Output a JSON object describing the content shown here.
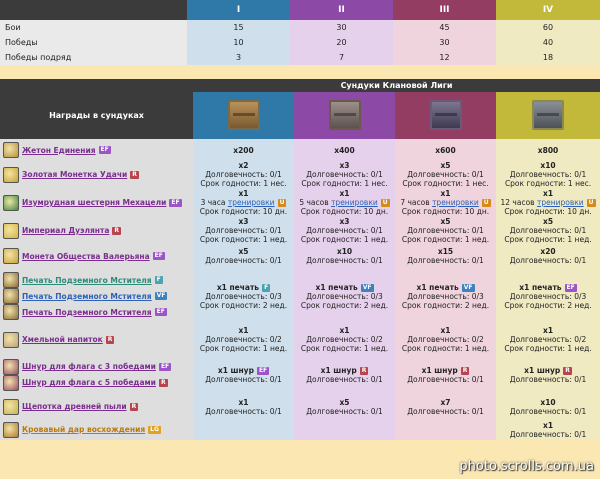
{
  "tiers": {
    "headers": [
      "I",
      "II",
      "III",
      "IV"
    ],
    "rows": [
      {
        "label": "Бои",
        "values": [
          "15",
          "30",
          "45",
          "60"
        ]
      },
      {
        "label": "Победы",
        "values": [
          "10",
          "20",
          "30",
          "40"
        ]
      },
      {
        "label": "Победы подряд",
        "values": [
          "3",
          "7",
          "12",
          "18"
        ]
      }
    ]
  },
  "main": {
    "title": "Сундуки Клановой Лиги",
    "rewards_header": "Награды в сундуках",
    "chest_icons": [
      "chest-wooden-icon",
      "chest-silver-icon",
      "chest-violet-icon",
      "chest-gold-icon"
    ]
  },
  "colors": {
    "tier1": "#2e79a8",
    "tier2": "#8c49a6",
    "tier3": "#943d62",
    "tier4": "#c2b83a"
  },
  "rows": [
    {
      "items": [
        {
          "name": "Жетон Единения",
          "badge": "EF",
          "link": "ep",
          "icon": "token-icon",
          "icon_color": "#b8903a"
        }
      ],
      "cells": [
        [
          "x200"
        ],
        [
          "x400"
        ],
        [
          "x600"
        ],
        [
          "x800"
        ]
      ]
    },
    {
      "items": [
        {
          "name": "Золотая Монетка Удачи",
          "badge": "R",
          "link": "ep",
          "icon": "gold-coin-icon",
          "icon_color": "#c9a22a"
        }
      ],
      "cells": [
        [
          "x2",
          "Долговечность: 0/1",
          "Срок годности: 1 нес."
        ],
        [
          "x3",
          "Долговечность: 0/1",
          "Срок годности: 1 нес."
        ],
        [
          "x5",
          "Долговечность: 0/1",
          "Срок годности: 1 нес."
        ],
        [
          "x10",
          "Долговечность: 0/1",
          "Срок годности: 1 нес."
        ]
      ]
    },
    {
      "items": [
        {
          "name": "Изумрудная шестерня Мехацели",
          "badge": "EF",
          "link": "ep",
          "icon": "emerald-gear-icon",
          "icon_color": "#3a8a3a"
        }
      ],
      "training": "тренировки",
      "cells": [
        [
          "x1",
          "3 часа",
          "Срок годности: 10 дн."
        ],
        [
          "x1",
          "5 часов",
          "Срок годности: 10 дн."
        ],
        [
          "x1",
          "7 часов",
          "Срок годности: 10 дн."
        ],
        [
          "x1",
          "12 часов",
          "Срок годности: 10 дн."
        ]
      ]
    },
    {
      "items": [
        {
          "name": "Империал Дуэлянта",
          "badge": "R",
          "link": "ep",
          "icon": "imperial-coin-icon",
          "icon_color": "#d6b43a"
        }
      ],
      "cells": [
        [
          "x3",
          "Долговечность: 0/1",
          "Срок годности: 1 нед."
        ],
        [
          "x3",
          "Долговечность: 0/1",
          "Срок годности: 1 нед."
        ],
        [
          "x5",
          "Долговечность: 0/1",
          "Срок годности: 1 нед."
        ],
        [
          "x5",
          "Долговечность: 0/1",
          "Срок годности: 1 нед."
        ]
      ]
    },
    {
      "items": [
        {
          "name": "Монета Общества Валерьяна",
          "badge": "EF",
          "link": "ep",
          "icon": "valerian-coin-icon",
          "icon_color": "#caa032"
        }
      ],
      "cells": [
        [
          "x5",
          "Долговечность: 0/1"
        ],
        [
          "x10",
          "Долговечность: 0/1"
        ],
        [
          "x15",
          "Долговечность: 0/1"
        ],
        [
          "x20",
          "Долговечность: 0/1"
        ]
      ]
    },
    {
      "items": [
        {
          "name": "Печать Подземного Мстителя",
          "badge": "F",
          "link": "un",
          "icon": "seal-icon",
          "icon_color": "#8a6a3a"
        },
        {
          "name": "Печать Подземного Мстителя",
          "badge": "VF",
          "link": "ra",
          "icon": "seal-icon",
          "icon_color": "#8a6a3a"
        },
        {
          "name": "Печать Подземного Мстителя",
          "badge": "EF",
          "link": "ep",
          "icon": "seal-icon",
          "icon_color": "#8a6a3a"
        }
      ],
      "cells": [
        {
          "head": "x1 печать",
          "badge": "F",
          "lines": [
            "Долговечность: 0/3",
            "Срок годности: 2 нед."
          ]
        },
        {
          "head": "x1 печать",
          "badge": "VF",
          "lines": [
            "Долговечность: 0/3",
            "Срок годности: 2 нед."
          ]
        },
        {
          "head": "x1 печать",
          "badge": "VF",
          "lines": [
            "Долговечность: 0/3",
            "Срок годности: 2 нед."
          ]
        },
        {
          "head": "x1 печать",
          "badge": "EF",
          "lines": [
            "Долговечность: 0/3",
            "Срок годности: 2 нед."
          ]
        }
      ]
    },
    {
      "items": [
        {
          "name": "Хмельной напиток",
          "badge": "R",
          "link": "ep",
          "icon": "drink-icon",
          "icon_color": "#b8a07a"
        }
      ],
      "cells": [
        [
          "x1",
          "Долговечность: 0/2",
          "Срок годности: 1 нед."
        ],
        [
          "x1",
          "Долговечность: 0/2",
          "Срок годности: 1 нед."
        ],
        [
          "x1",
          "Долговечность: 0/2",
          "Срок годности: 1 нед."
        ],
        [
          "x1",
          "Долговечность: 0/2",
          "Срок годности: 1 нед."
        ]
      ]
    },
    {
      "items": [
        {
          "name": "Шнур для флага с 3 победами",
          "badge": "EF",
          "link": "ep",
          "icon": "flag-cord-icon",
          "icon_color": "#9a4a6a"
        },
        {
          "name": "Шнур для флага с 5 победами",
          "badge": "R",
          "link": "ep",
          "icon": "flag-cord-icon",
          "icon_color": "#9a4a6a"
        }
      ],
      "cells": [
        {
          "head": "x1 шнур",
          "badge": "EF",
          "lines": [
            "Долговечность: 0/1"
          ]
        },
        {
          "head": "x1 шнур",
          "badge": "R",
          "lines": [
            "Долговечность: 0/1"
          ]
        },
        {
          "head": "x1 шнур",
          "badge": "R",
          "lines": [
            "Долговечность: 0/1"
          ]
        },
        {
          "head": "x1 шнур",
          "badge": "R",
          "lines": [
            "Долговечность: 0/1"
          ]
        }
      ]
    },
    {
      "items": [
        {
          "name": "Щепотка древней пыли",
          "badge": "R",
          "link": "ep",
          "icon": "ancient-dust-icon",
          "icon_color": "#c9b050"
        }
      ],
      "cells": [
        [
          "x1",
          "Долговечность: 0/1"
        ],
        [
          "x5",
          "Долговечность: 0/1"
        ],
        [
          "x7",
          "Долговечность: 0/1"
        ],
        [
          "x10",
          "Долговечность: 0/1"
        ]
      ]
    },
    {
      "items": [
        {
          "name": "Кровавый дар восхождения",
          "badge": "LG",
          "link": "le",
          "icon": "blood-gift-icon",
          "icon_color": "#b07a2a"
        }
      ],
      "cells": [
        [],
        [],
        [],
        [
          "x1",
          "Долговечность: 0/1"
        ]
      ]
    }
  ],
  "watermark": "photo.scrolls.com.ua"
}
